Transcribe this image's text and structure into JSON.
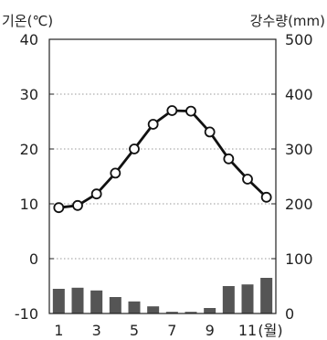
{
  "chart_data": {
    "type": "bar+line",
    "title": "",
    "x": [
      1,
      2,
      3,
      4,
      5,
      6,
      7,
      8,
      9,
      10,
      11,
      12
    ],
    "x_tick_labels": [
      "1",
      "3",
      "5",
      "7",
      "9",
      "11"
    ],
    "x_unit_label": "(월)",
    "temperature_axis": {
      "title": "기온(℃)",
      "range": [
        -10,
        40
      ],
      "ticks": [
        "40",
        "30",
        "20",
        "10",
        "0",
        "-10"
      ]
    },
    "precipitation_axis": {
      "title": "강수량(mm)",
      "range": [
        0,
        500
      ],
      "ticks": [
        "500",
        "400",
        "300",
        "200",
        "100",
        "0"
      ]
    },
    "series": [
      {
        "type": "line",
        "axis": "left",
        "color": "#111111",
        "marker": "open-circle",
        "values": [
          9.3,
          9.7,
          11.8,
          15.6,
          20.0,
          24.5,
          27.0,
          26.9,
          23.1,
          18.2,
          14.5,
          11.2
        ]
      },
      {
        "type": "bar",
        "axis": "right",
        "color": "#555555",
        "values": [
          45,
          47,
          42,
          30,
          22,
          13,
          3,
          3,
          10,
          50,
          53,
          65
        ]
      }
    ],
    "grid": {
      "horizontal": true,
      "style": "dotted"
    }
  }
}
